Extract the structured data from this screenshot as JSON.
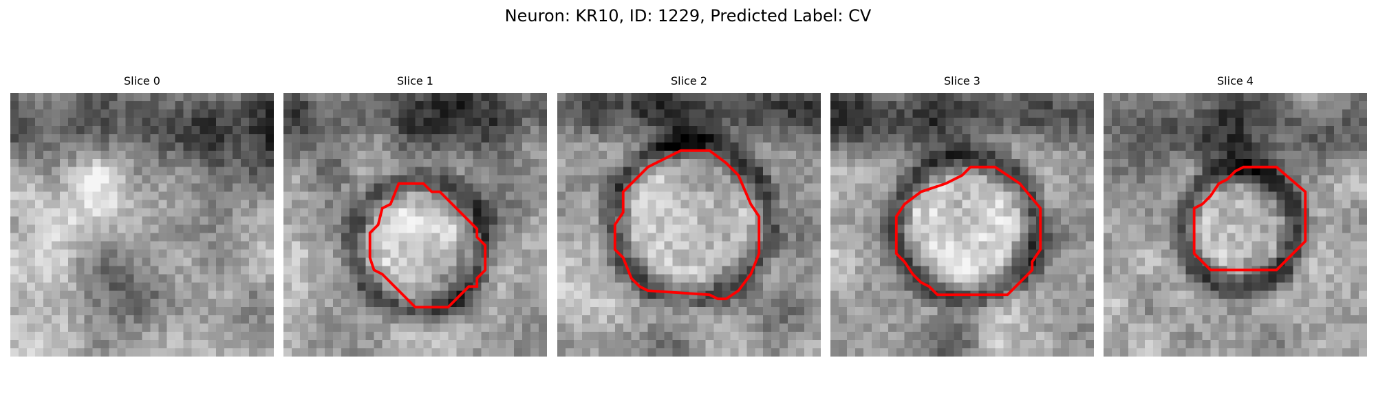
{
  "figure": {
    "title": "Neuron: KR10, ID: 1229, Predicted Label: CV"
  },
  "colors": {
    "background": "#ffffff",
    "contour": "#ff0000",
    "image_colormap": "grayscale"
  },
  "panels": [
    {
      "label": "Slice 0",
      "has_contour": false
    },
    {
      "label": "Slice 1",
      "has_contour": true
    },
    {
      "label": "Slice 2",
      "has_contour": true
    },
    {
      "label": "Slice 3",
      "has_contour": true
    },
    {
      "label": "Slice 4",
      "has_contour": true
    }
  ]
}
